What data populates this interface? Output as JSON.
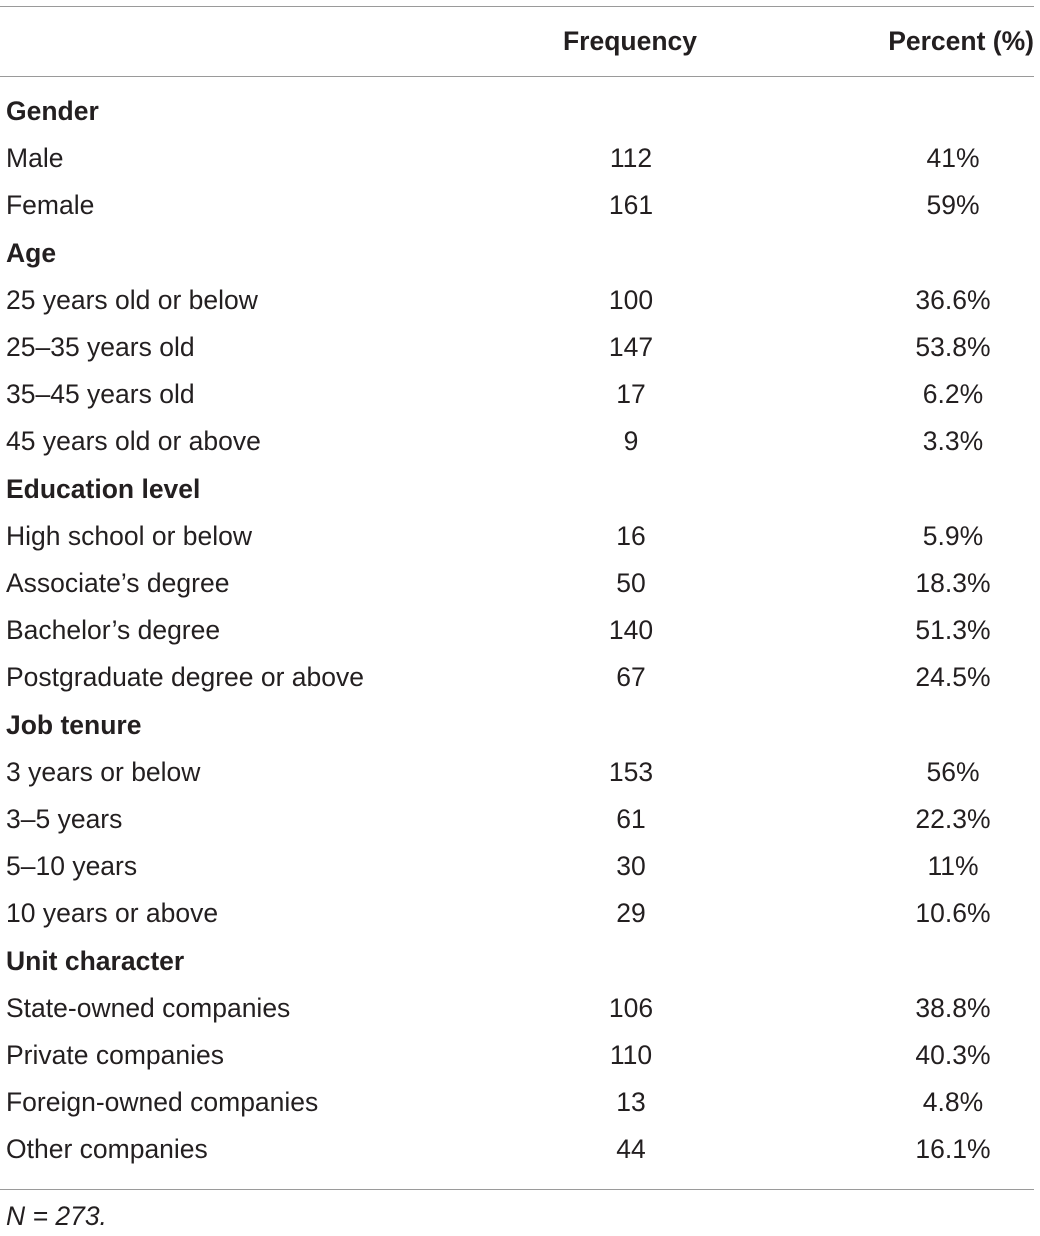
{
  "table": {
    "header": {
      "label": "",
      "frequency": "Frequency",
      "percent": "Percent (%)"
    },
    "groups": [
      {
        "title": "Gender",
        "rows": [
          {
            "label": "Male",
            "frequency": "112",
            "percent": "41%"
          },
          {
            "label": "Female",
            "frequency": "161",
            "percent": "59%"
          }
        ]
      },
      {
        "title": "Age",
        "rows": [
          {
            "label": "25 years old or below",
            "frequency": "100",
            "percent": "36.6%"
          },
          {
            "label": "25–35 years old",
            "frequency": "147",
            "percent": "53.8%"
          },
          {
            "label": "35–45 years old",
            "frequency": "17",
            "percent": "6.2%"
          },
          {
            "label": "45 years old or above",
            "frequency": "9",
            "percent": "3.3%"
          }
        ]
      },
      {
        "title": "Education level",
        "rows": [
          {
            "label": "High school or below",
            "frequency": "16",
            "percent": "5.9%"
          },
          {
            "label": "Associate’s degree",
            "frequency": "50",
            "percent": "18.3%"
          },
          {
            "label": "Bachelor’s degree",
            "frequency": "140",
            "percent": "51.3%"
          },
          {
            "label": "Postgraduate degree or above",
            "frequency": "67",
            "percent": "24.5%"
          }
        ]
      },
      {
        "title": "Job tenure",
        "rows": [
          {
            "label": "3 years or below",
            "frequency": "153",
            "percent": "56%"
          },
          {
            "label": "3–5 years",
            "frequency": "61",
            "percent": "22.3%"
          },
          {
            "label": "5–10 years",
            "frequency": "30",
            "percent": "11%"
          },
          {
            "label": "10 years or above",
            "frequency": "29",
            "percent": "10.6%"
          }
        ]
      },
      {
        "title": "Unit character",
        "rows": [
          {
            "label": "State-owned companies",
            "frequency": "106",
            "percent": "38.8%"
          },
          {
            "label": "Private companies",
            "frequency": "110",
            "percent": "40.3%"
          },
          {
            "label": "Foreign-owned companies",
            "frequency": "13",
            "percent": "4.8%"
          },
          {
            "label": "Other companies",
            "frequency": "44",
            "percent": "16.1%"
          }
        ]
      }
    ],
    "note": "N = 273."
  }
}
